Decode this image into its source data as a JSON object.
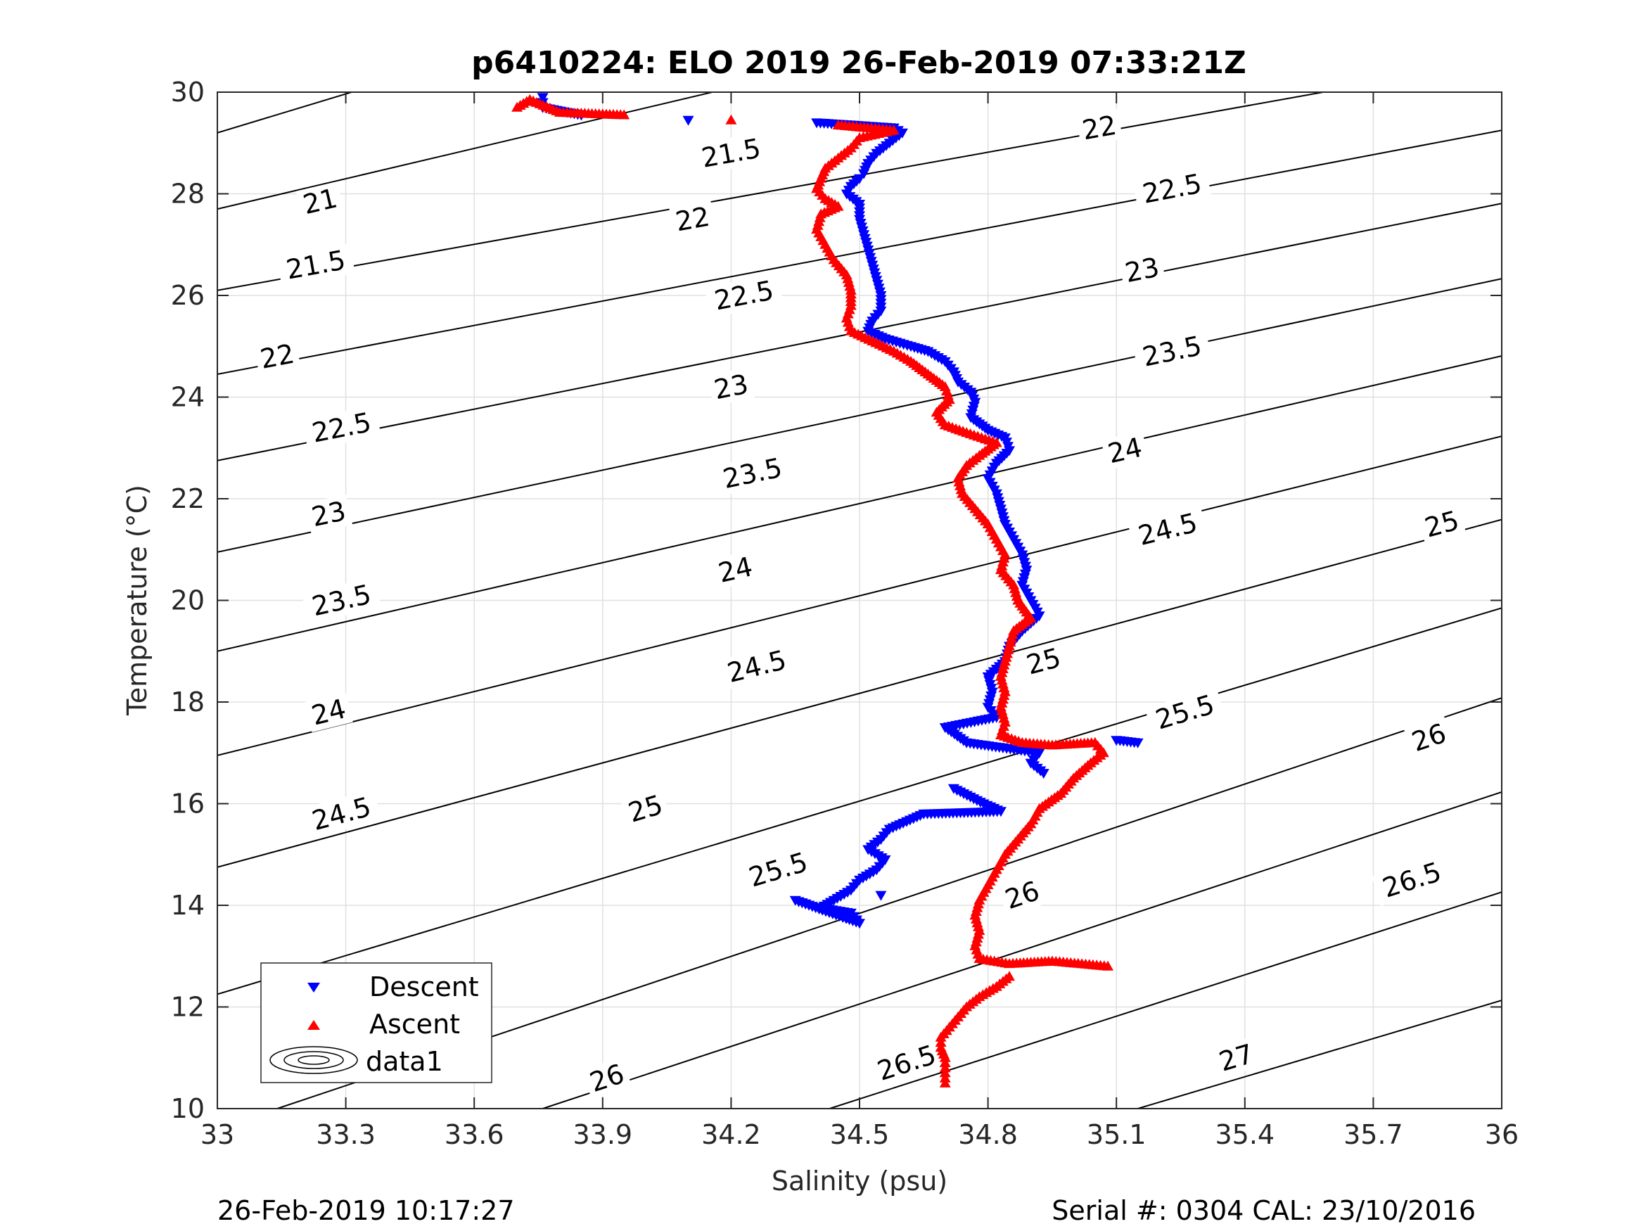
{
  "chart_data": {
    "type": "scatter",
    "title": "p6410224: ELO 2019 26-Feb-2019 07:33:21Z",
    "xlabel": "Salinity (psu)",
    "ylabel": "Temperature (°C)",
    "xlim": [
      33,
      36
    ],
    "ylim": [
      10,
      30
    ],
    "xticks": [
      "33",
      "33.3",
      "33.6",
      "33.9",
      "34.2",
      "34.5",
      "34.8",
      "35.1",
      "35.4",
      "35.7",
      "36"
    ],
    "yticks": [
      "10",
      "12",
      "14",
      "16",
      "18",
      "20",
      "22",
      "24",
      "26",
      "28",
      "30"
    ],
    "grid": true,
    "legend_position": "bottom-left",
    "legend": [
      "Descent",
      "Ascent",
      "data1"
    ],
    "colors": {
      "descent": "#0000ff",
      "ascent": "#ff0000",
      "contour": "#000000",
      "grid": "#e0e0e0"
    },
    "series": [
      {
        "name": "Descent",
        "marker": "triangle-down",
        "points": [
          [
            33.76,
            29.9
          ],
          [
            33.76,
            29.7
          ],
          [
            33.85,
            29.55
          ],
          [
            34.1,
            29.45
          ],
          [
            34.4,
            29.4
          ],
          [
            34.58,
            29.3
          ],
          [
            34.6,
            29.2
          ],
          [
            34.57,
            29.0
          ],
          [
            34.54,
            28.8
          ],
          [
            34.52,
            28.6
          ],
          [
            34.51,
            28.4
          ],
          [
            34.5,
            28.3
          ],
          [
            34.48,
            28.15
          ],
          [
            34.47,
            28.0
          ],
          [
            34.5,
            27.8
          ],
          [
            34.5,
            27.5
          ],
          [
            34.51,
            27.2
          ],
          [
            34.52,
            26.9
          ],
          [
            34.53,
            26.6
          ],
          [
            34.54,
            26.3
          ],
          [
            34.55,
            26.0
          ],
          [
            34.55,
            25.7
          ],
          [
            34.53,
            25.5
          ],
          [
            34.52,
            25.3
          ],
          [
            34.56,
            25.15
          ],
          [
            34.62,
            25.0
          ],
          [
            34.66,
            24.9
          ],
          [
            34.7,
            24.7
          ],
          [
            34.72,
            24.5
          ],
          [
            34.73,
            24.3
          ],
          [
            34.76,
            24.1
          ],
          [
            34.77,
            23.9
          ],
          [
            34.76,
            23.6
          ],
          [
            34.8,
            23.35
          ],
          [
            34.84,
            23.2
          ],
          [
            34.85,
            22.95
          ],
          [
            34.82,
            22.7
          ],
          [
            34.8,
            22.4
          ],
          [
            34.82,
            22.1
          ],
          [
            34.83,
            21.8
          ],
          [
            34.84,
            21.5
          ],
          [
            34.86,
            21.2
          ],
          [
            34.88,
            20.9
          ],
          [
            34.89,
            20.6
          ],
          [
            34.88,
            20.3
          ],
          [
            34.9,
            20.0
          ],
          [
            34.92,
            19.7
          ],
          [
            34.88,
            19.4
          ],
          [
            34.85,
            19.1
          ],
          [
            34.84,
            18.8
          ],
          [
            34.8,
            18.5
          ],
          [
            34.81,
            18.2
          ],
          [
            34.8,
            17.9
          ],
          [
            34.82,
            17.7
          ],
          [
            34.7,
            17.5
          ],
          [
            34.75,
            17.2
          ],
          [
            34.92,
            17.0
          ],
          [
            34.9,
            16.8
          ],
          [
            34.93,
            16.6
          ],
          [
            34.72,
            16.3
          ],
          [
            34.79,
            16.0
          ],
          [
            34.83,
            15.85
          ],
          [
            34.65,
            15.8
          ],
          [
            34.57,
            15.5
          ],
          [
            34.55,
            15.3
          ],
          [
            34.52,
            15.1
          ],
          [
            34.56,
            14.9
          ],
          [
            34.54,
            14.7
          ],
          [
            34.5,
            14.5
          ],
          [
            34.48,
            14.3
          ],
          [
            34.44,
            14.1
          ],
          [
            34.41,
            13.95
          ],
          [
            34.48,
            13.85
          ],
          [
            34.5,
            13.65
          ],
          [
            34.35,
            14.1
          ],
          [
            34.47,
            13.75
          ],
          [
            35.15,
            17.2
          ],
          [
            35.1,
            17.25
          ],
          [
            34.55,
            14.2
          ]
        ]
      },
      {
        "name": "Ascent",
        "marker": "triangle-up",
        "points": [
          [
            33.7,
            29.7
          ],
          [
            33.73,
            29.85
          ],
          [
            33.8,
            29.6
          ],
          [
            33.95,
            29.55
          ],
          [
            34.2,
            29.45
          ],
          [
            34.45,
            29.35
          ],
          [
            34.58,
            29.25
          ],
          [
            34.5,
            29.1
          ],
          [
            34.48,
            28.9
          ],
          [
            34.45,
            28.7
          ],
          [
            34.42,
            28.5
          ],
          [
            34.41,
            28.3
          ],
          [
            34.4,
            28.1
          ],
          [
            34.42,
            27.9
          ],
          [
            34.45,
            27.75
          ],
          [
            34.41,
            27.6
          ],
          [
            34.4,
            27.3
          ],
          [
            34.42,
            27.0
          ],
          [
            34.44,
            26.7
          ],
          [
            34.47,
            26.4
          ],
          [
            34.48,
            26.1
          ],
          [
            34.48,
            25.8
          ],
          [
            34.47,
            25.55
          ],
          [
            34.48,
            25.3
          ],
          [
            34.53,
            25.1
          ],
          [
            34.58,
            24.9
          ],
          [
            34.62,
            24.7
          ],
          [
            34.66,
            24.45
          ],
          [
            34.7,
            24.2
          ],
          [
            34.71,
            23.95
          ],
          [
            34.68,
            23.7
          ],
          [
            34.7,
            23.45
          ],
          [
            34.75,
            23.3
          ],
          [
            34.82,
            23.1
          ],
          [
            34.78,
            22.85
          ],
          [
            34.75,
            22.65
          ],
          [
            34.73,
            22.4
          ],
          [
            34.74,
            22.1
          ],
          [
            34.77,
            21.8
          ],
          [
            34.8,
            21.5
          ],
          [
            34.82,
            21.2
          ],
          [
            34.84,
            20.9
          ],
          [
            34.83,
            20.6
          ],
          [
            34.86,
            20.3
          ],
          [
            34.87,
            20.0
          ],
          [
            34.9,
            19.65
          ],
          [
            34.86,
            19.4
          ],
          [
            34.85,
            19.1
          ],
          [
            34.84,
            18.8
          ],
          [
            34.83,
            18.5
          ],
          [
            34.84,
            18.2
          ],
          [
            34.83,
            17.9
          ],
          [
            34.84,
            17.6
          ],
          [
            34.83,
            17.35
          ],
          [
            34.88,
            17.2
          ],
          [
            34.95,
            17.15
          ],
          [
            35.05,
            17.2
          ],
          [
            35.07,
            17.0
          ],
          [
            35.04,
            16.8
          ],
          [
            35.0,
            16.5
          ],
          [
            34.97,
            16.2
          ],
          [
            34.92,
            15.9
          ],
          [
            34.9,
            15.6
          ],
          [
            34.87,
            15.3
          ],
          [
            34.84,
            15.0
          ],
          [
            34.82,
            14.7
          ],
          [
            34.8,
            14.4
          ],
          [
            34.78,
            14.1
          ],
          [
            34.77,
            13.8
          ],
          [
            34.78,
            13.5
          ],
          [
            34.77,
            13.2
          ],
          [
            34.78,
            12.95
          ],
          [
            34.85,
            12.85
          ],
          [
            34.95,
            12.9
          ],
          [
            35.08,
            12.8
          ],
          [
            34.85,
            12.6
          ],
          [
            34.82,
            12.4
          ],
          [
            34.78,
            12.2
          ],
          [
            34.75,
            12.0
          ],
          [
            34.73,
            11.8
          ],
          [
            34.71,
            11.6
          ],
          [
            34.69,
            11.4
          ],
          [
            34.69,
            11.2
          ],
          [
            34.7,
            11.0
          ],
          [
            34.7,
            10.8
          ],
          [
            34.7,
            10.6
          ],
          [
            34.7,
            10.5
          ]
        ]
      }
    ],
    "contours": [
      {
        "level": "21",
        "points": [
          [
            33,
            29.2
          ],
          [
            33.89,
            31.47
          ]
        ]
      },
      {
        "level": "21.5",
        "points": [
          [
            33,
            27.7
          ],
          [
            34.9,
            31.48
          ]
        ]
      },
      {
        "level": "21.5",
        "points": [
          [
            33,
            26.1
          ],
          [
            36,
            30.63
          ]
        ]
      },
      {
        "level": "22",
        "points": [
          [
            33,
            24.45
          ],
          [
            36,
            29.25
          ]
        ]
      },
      {
        "level": "22.5",
        "points": [
          [
            33,
            22.75
          ],
          [
            36,
            27.81
          ]
        ]
      },
      {
        "level": "23",
        "points": [
          [
            33,
            20.95
          ],
          [
            36,
            26.33
          ]
        ]
      },
      {
        "level": "23.5",
        "points": [
          [
            33,
            19.0
          ],
          [
            36,
            24.81
          ]
        ]
      },
      {
        "level": "24",
        "points": [
          [
            33,
            16.95
          ],
          [
            36,
            23.23
          ]
        ]
      },
      {
        "level": "24.5",
        "points": [
          [
            33,
            14.75
          ],
          [
            36,
            21.59
          ]
        ]
      },
      {
        "level": "25",
        "points": [
          [
            33,
            12.25
          ],
          [
            36,
            19.85
          ]
        ]
      },
      {
        "level": "25.5",
        "points": [
          [
            33.14,
            10
          ],
          [
            36,
            18.08
          ]
        ]
      },
      {
        "level": "26",
        "points": [
          [
            33.76,
            10
          ],
          [
            36,
            16.23
          ]
        ]
      },
      {
        "level": "26.5",
        "points": [
          [
            34.43,
            10
          ],
          [
            36,
            14.26
          ]
        ]
      },
      {
        "level": "27",
        "points": [
          [
            35.15,
            10
          ],
          [
            36,
            12.13
          ]
        ]
      }
    ],
    "contour_labels": [
      {
        "text": "21",
        "x": 33.24,
        "y": 27.85
      },
      {
        "text": "21.5",
        "x": 34.2,
        "y": 28.8
      },
      {
        "text": "21.5",
        "x": 33.23,
        "y": 26.6
      },
      {
        "text": "22",
        "x": 35.06,
        "y": 29.3
      },
      {
        "text": "22",
        "x": 34.11,
        "y": 27.5
      },
      {
        "text": "22",
        "x": 33.14,
        "y": 24.8
      },
      {
        "text": "22.5",
        "x": 35.23,
        "y": 28.1
      },
      {
        "text": "22.5",
        "x": 34.23,
        "y": 26.0
      },
      {
        "text": "22.5",
        "x": 33.29,
        "y": 23.4
      },
      {
        "text": "23",
        "x": 35.16,
        "y": 26.5
      },
      {
        "text": "23",
        "x": 34.2,
        "y": 24.2
      },
      {
        "text": "23",
        "x": 33.26,
        "y": 21.7
      },
      {
        "text": "23.5",
        "x": 35.23,
        "y": 24.9
      },
      {
        "text": "23.5",
        "x": 34.25,
        "y": 22.5
      },
      {
        "text": "23.5",
        "x": 33.29,
        "y": 20.0
      },
      {
        "text": "24",
        "x": 35.12,
        "y": 22.95
      },
      {
        "text": "24",
        "x": 34.21,
        "y": 20.6
      },
      {
        "text": "24",
        "x": 33.26,
        "y": 17.8
      },
      {
        "text": "24.5",
        "x": 35.22,
        "y": 21.4
      },
      {
        "text": "24.5",
        "x": 34.26,
        "y": 18.7
      },
      {
        "text": "24.5",
        "x": 33.29,
        "y": 15.8
      },
      {
        "text": "25",
        "x": 35.86,
        "y": 21.5
      },
      {
        "text": "25",
        "x": 34.93,
        "y": 18.8
      },
      {
        "text": "25",
        "x": 34.0,
        "y": 15.9
      },
      {
        "text": "25.5",
        "x": 33.41,
        "y": 11.1
      },
      {
        "text": "25.5",
        "x": 35.26,
        "y": 17.8
      },
      {
        "text": "25.5",
        "x": 34.31,
        "y": 14.7
      },
      {
        "text": "26",
        "x": 35.83,
        "y": 17.3
      },
      {
        "text": "26",
        "x": 34.88,
        "y": 14.2
      },
      {
        "text": "26",
        "x": 33.91,
        "y": 10.6
      },
      {
        "text": "26.5",
        "x": 35.79,
        "y": 14.5
      },
      {
        "text": "26.5",
        "x": 34.61,
        "y": 10.9
      },
      {
        "text": "27",
        "x": 35.38,
        "y": 11.0
      }
    ]
  },
  "footer": {
    "left": "26-Feb-2019 10:17:27",
    "right": "Serial #: 0304  CAL: 23/10/2016"
  }
}
